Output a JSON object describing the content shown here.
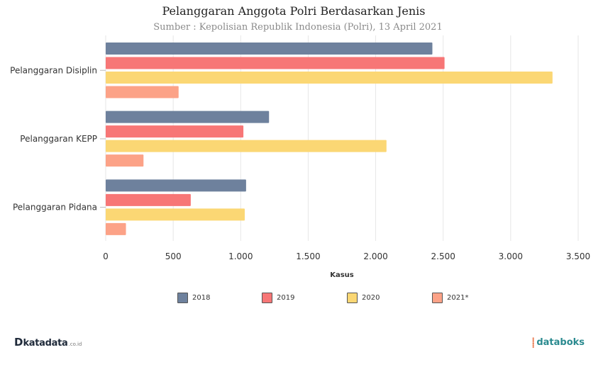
{
  "header": {
    "title": "Pelanggaran Anggota Polri Berdasarkan Jenis",
    "subtitle": "Sumber : Kepolisian Republik Indonesia (Polri), 13 April 2021"
  },
  "chart_data": {
    "type": "bar",
    "orientation": "horizontal",
    "title": "Pelanggaran Anggota Polri Berdasarkan Jenis",
    "subtitle": "Sumber : Kepolisian Republik Indonesia (Polri), 13 April 2021",
    "categories": [
      "Pelanggaran Disiplin",
      "Pelanggaran KEPP",
      "Pelanggaran Pidana"
    ],
    "series": [
      {
        "name": "2018",
        "color": "#6e819d",
        "values": [
          2420,
          1210,
          1040
        ]
      },
      {
        "name": "2019",
        "color": "#f77676",
        "values": [
          2510,
          1020,
          630
        ]
      },
      {
        "name": "2020",
        "color": "#fbd774",
        "values": [
          3310,
          2080,
          1030
        ]
      },
      {
        "name": "2021*",
        "color": "#fca287",
        "values": [
          540,
          280,
          150
        ]
      }
    ],
    "xlabel": "Kasus",
    "ylabel": "",
    "xlim": [
      0,
      3500
    ],
    "xticks": [
      0,
      500,
      1000,
      1500,
      2000,
      2500,
      3000,
      3500
    ],
    "xtick_labels": [
      "0",
      "500",
      "1.000",
      "1.500",
      "2.000",
      "2.500",
      "3.000",
      "3.500"
    ],
    "grid": true,
    "legend_position": "bottom"
  },
  "footer": {
    "brand_left_mark": "D",
    "brand_left_name": "katadata",
    "brand_left_suffix": ".co.id",
    "brand_right_mark": "⸽",
    "brand_right_name": "databoks"
  }
}
